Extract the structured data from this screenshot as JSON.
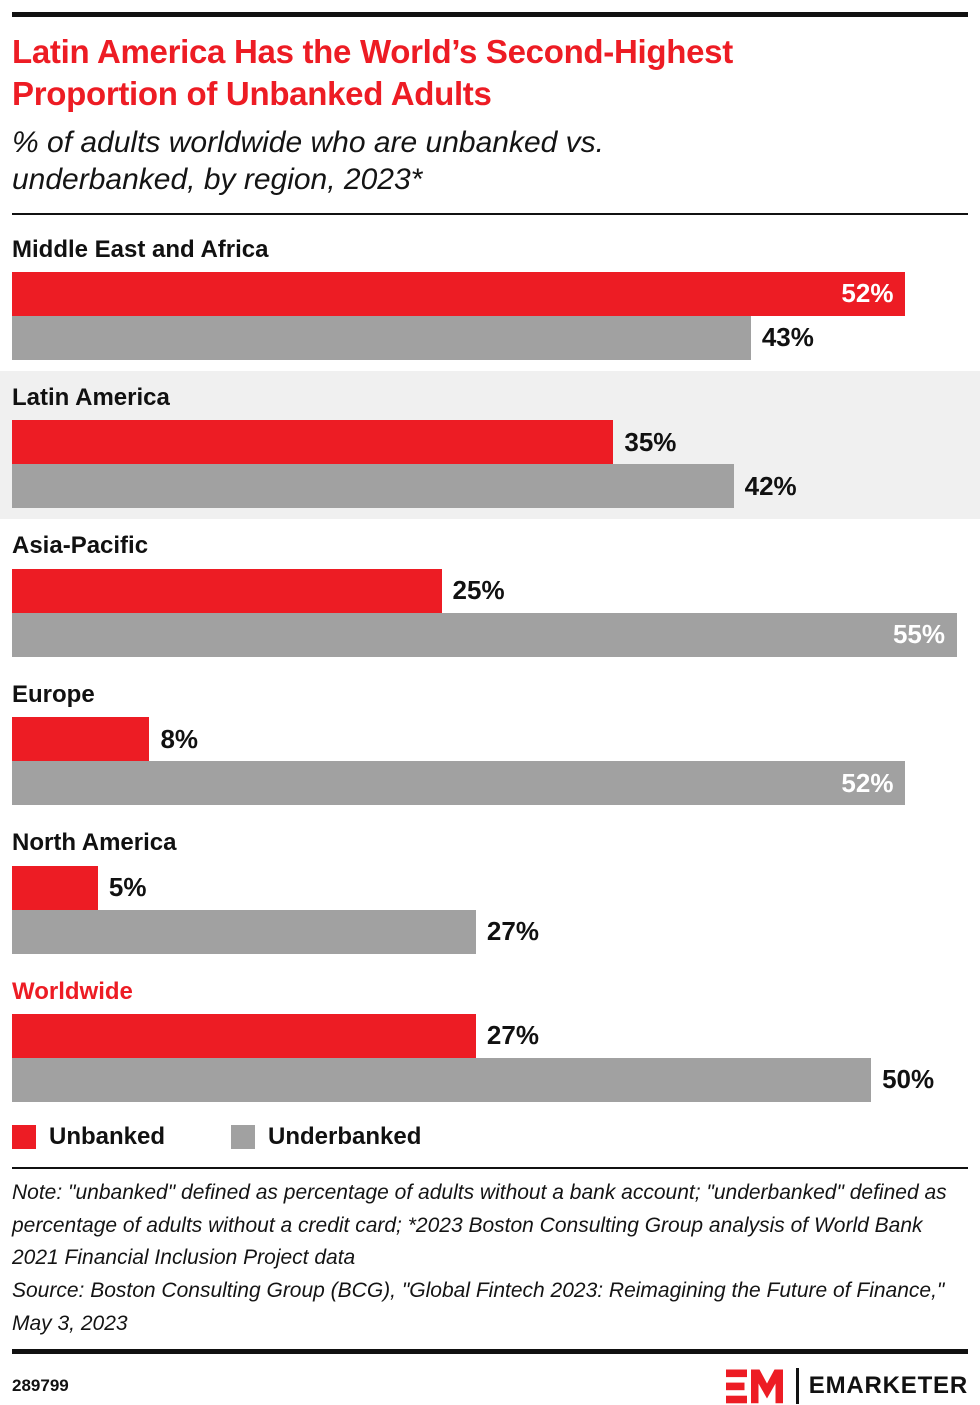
{
  "header": {
    "title": "Latin America Has the World’s Second-Highest Proportion of Unbanked Adults",
    "subtitle": "% of adults worldwide who are unbanked vs. underbanked, by region, 2023*"
  },
  "chart_data": {
    "type": "bar",
    "orientation": "horizontal",
    "categories": [
      "Middle East and Africa",
      "Latin America",
      "Asia-Pacific",
      "Europe",
      "North America",
      "Worldwide"
    ],
    "series": [
      {
        "name": "Unbanked",
        "color": "#ED1C24",
        "values": [
          52,
          35,
          25,
          8,
          5,
          27
        ]
      },
      {
        "name": "Underbanked",
        "color": "#A1A1A1",
        "values": [
          43,
          42,
          55,
          52,
          27,
          50
        ]
      }
    ],
    "xlim": [
      0,
      55
    ],
    "value_suffix": "%",
    "grid": false,
    "legend_position": "bottom",
    "highlighted_category": "Latin America",
    "red_label_category": "Worldwide",
    "highlight_bg": "#F0F0F0"
  },
  "note": {
    "definition": "Note: \"unbanked\" defined as percentage of adults without a bank account; \"underbanked\" defined as percentage of adults without a credit card; *2023 Boston Consulting Group analysis of World Bank 2021 Financial Inclusion Project data",
    "source": "Source: Boston Consulting Group (BCG), \"Global Fintech 2023: Reimagining the Future of Finance,\" May 3, 2023"
  },
  "footer": {
    "chart_id": "289799",
    "brand_name": "EMARKETER"
  },
  "colors": {
    "accent_red": "#ED1C24",
    "bar_gray": "#A1A1A1",
    "ink": "#111111"
  }
}
